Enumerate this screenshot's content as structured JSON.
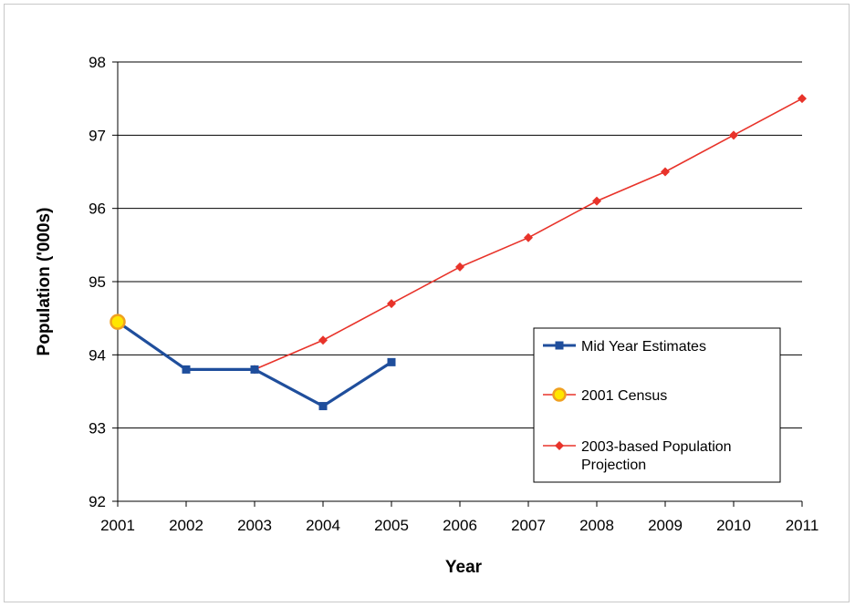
{
  "chart_data": {
    "type": "line",
    "xlabel": "Year",
    "ylabel": "Population ('000s)",
    "ylim": [
      92,
      98
    ],
    "yticks": [
      92,
      93,
      94,
      95,
      96,
      97,
      98
    ],
    "xticks": [
      2001,
      2002,
      2003,
      2004,
      2005,
      2006,
      2007,
      2008,
      2009,
      2010,
      2011
    ],
    "grid": true,
    "legend_position": "bottom-right",
    "series": [
      {
        "name": "Mid Year Estimates",
        "color": "#1f4e9c",
        "marker": "square",
        "x": [
          2001,
          2002,
          2003,
          2004,
          2005
        ],
        "y": [
          94.45,
          93.8,
          93.8,
          93.3,
          93.9
        ]
      },
      {
        "name": "2001 Census",
        "color": "#e8332a",
        "marker": "circle",
        "marker_fill": "#ffe600",
        "x": [
          2001
        ],
        "y": [
          94.45
        ]
      },
      {
        "name": "2003-based Population Projection",
        "color": "#e8332a",
        "marker": "diamond",
        "x": [
          2003,
          2004,
          2005,
          2006,
          2007,
          2008,
          2009,
          2010,
          2011
        ],
        "y": [
          93.8,
          94.2,
          94.7,
          95.2,
          95.6,
          96.1,
          96.5,
          97.0,
          97.5
        ]
      }
    ],
    "legend_lines": [
      [
        "Mid Year Estimates"
      ],
      [
        "2001 Census"
      ],
      [
        "2003-based Population",
        "Projection"
      ]
    ]
  }
}
